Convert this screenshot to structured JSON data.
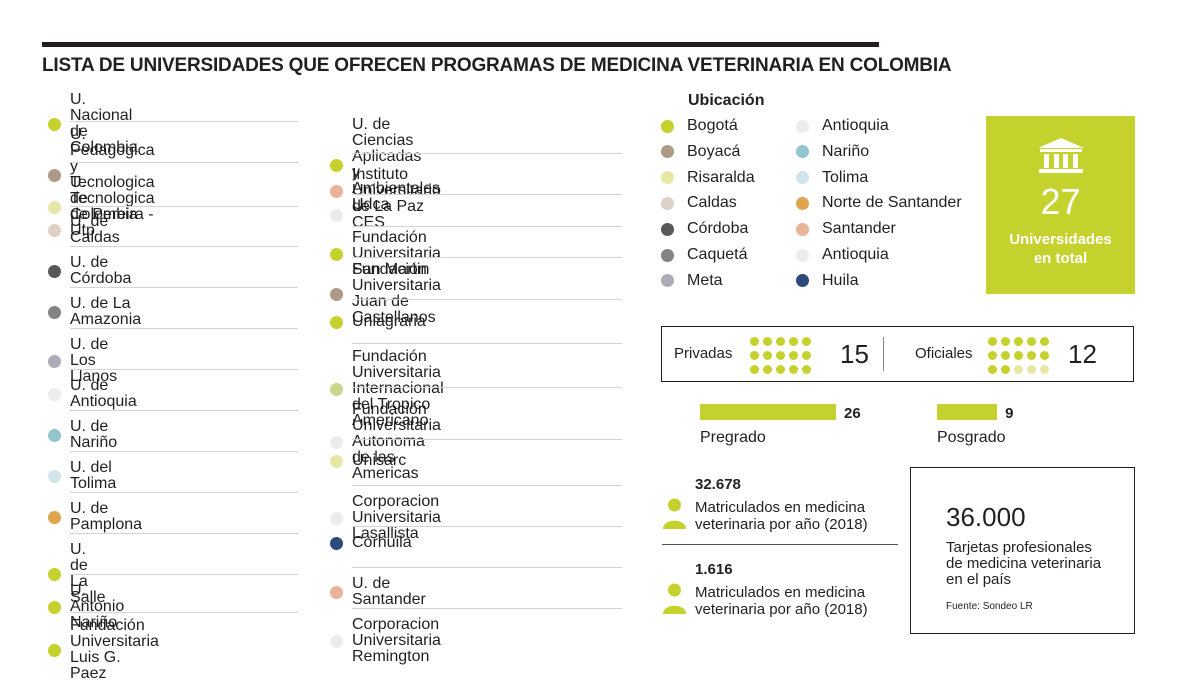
{
  "title": "LISTA DE UNIVERSIDADES QUE OFRECEN PROGRAMAS DE MEDICINA VETERINARIA EN COLOMBIA",
  "colors": {
    "lime": "#c5d22d",
    "brown": "#ad9a85",
    "pale_yellow": "#e6e7a7",
    "beige": "#ddd0c4",
    "dark_gray": "#58585a",
    "gray": "#838385",
    "lilac_gray": "#aeabb6",
    "very_light_gray": "#ececec",
    "teal": "#94c5cf",
    "light_blue": "#d1e5ea",
    "orange": "#e0a44f",
    "salmon": "#e8b399",
    "light_green": "#cbd58c",
    "navy": "#2c4a7a"
  },
  "universities_col1": [
    {
      "name": "U. Nacional de Colombia",
      "color": "#c5d22d"
    },
    {
      "name": "U. Pedagogica y Tecnologica\nde Colombia",
      "color": "#ad9a85"
    },
    {
      "name": "U. Tecnologica de Pereira - Utp",
      "color": "#e6e7a7"
    },
    {
      "name": "U. de Caldas",
      "color": "#ddd0c4"
    },
    {
      "name": "U. de Córdoba",
      "color": "#58585a"
    },
    {
      "name": "U. de La Amazonia",
      "color": "#838385"
    },
    {
      "name": "U. de Los Llanos",
      "color": "#aeabb6"
    },
    {
      "name": "U. de Antioquia",
      "color": "#ececec"
    },
    {
      "name": "U. de Nariño",
      "color": "#94c5cf"
    },
    {
      "name": "U. del Tolima",
      "color": "#d1e5ea"
    },
    {
      "name": "U. de Pamplona",
      "color": "#e0a44f"
    },
    {
      "name": "U. de La Salle",
      "color": "#c5d22d"
    },
    {
      "name": "U. Antonio Nariño",
      "color": "#c5d22d"
    },
    {
      "name": "Fundación Universitaria Luis G. Paez",
      "color": "#c5d22d"
    }
  ],
  "universities_col2": [
    {
      "name": "U. de Ciencias Aplicadas\ny Ambientales Udca",
      "color": "#c5d22d"
    },
    {
      "name": "Instituto Universitario de La Paz",
      "color": "#e8b399"
    },
    {
      "name": "U. CES",
      "color": "#ececec"
    },
    {
      "name": "Fundación Universitaria San Martin",
      "color": "#c5d22d"
    },
    {
      "name": "Fundación Universitaria\nJuan de Castellanos",
      "color": "#ad9a85"
    },
    {
      "name": "Uniagraria",
      "color": "#c5d22d"
    },
    {
      "name": "Fundación Universitaria\nInternacional del Tropico Americano",
      "color": "#cbd58c"
    },
    {
      "name": "Fundación Universitaria\nAutonoma de las Americas",
      "color": "#ececec"
    },
    {
      "name": "Unisarc",
      "color": "#e6e7a7"
    },
    {
      "name": "Corporacion Universitaria Lasallista",
      "color": "#ececec"
    },
    {
      "name": "Corhuila",
      "color": "#2c4a7a"
    },
    {
      "name": "U. de Santander",
      "color": "#e8b399"
    },
    {
      "name": "Corporacion Universitaria Remington",
      "color": "#ececec"
    }
  ],
  "ubicacion": {
    "title": "Ubicación",
    "col1": [
      {
        "name": "Bogotá",
        "color": "#c5d22d"
      },
      {
        "name": "Boyacá",
        "color": "#ad9a85"
      },
      {
        "name": "Risaralda",
        "color": "#e6e7a7"
      },
      {
        "name": "Caldas",
        "color": "#ddd0c4"
      },
      {
        "name": "Córdoba",
        "color": "#58585a"
      },
      {
        "name": "Caquetá",
        "color": "#838385"
      },
      {
        "name": "Meta",
        "color": "#aeabb6"
      }
    ],
    "col2": [
      {
        "name": "Antioquia",
        "color": "#ececec"
      },
      {
        "name": "Nariño",
        "color": "#94c5cf"
      },
      {
        "name": "Tolima",
        "color": "#d1e5ea"
      },
      {
        "name": "Norte de Santander",
        "color": "#e0a44f"
      },
      {
        "name": "Santander",
        "color": "#e8b399"
      },
      {
        "name": "Antioquia",
        "color": "#ececec"
      },
      {
        "name": "Huila",
        "color": "#2c4a7a"
      }
    ]
  },
  "total": {
    "value": "27",
    "label": "Universidades\nen total",
    "icon": "university-building-icon"
  },
  "tipo": {
    "privadas": {
      "label": "Privadas",
      "value": "15",
      "count": 15
    },
    "oficiales": {
      "label": "Oficiales",
      "value": "12",
      "count": 12
    }
  },
  "programas": {
    "pregrado": {
      "label": "Pregrado",
      "value": 26
    },
    "posgrado": {
      "label": "Posgrado",
      "value": 9
    }
  },
  "matriculados": [
    {
      "value": "32.678",
      "label": "Matriculados en medicina\nveterinaria por año (2018)"
    },
    {
      "value": "1.616",
      "label": "Matriculados en medicina\nveterinaria por año (2018)"
    }
  ],
  "tarjetas": {
    "value": "36.000",
    "label": "Tarjetas profesionales\nde medicina veterinaria\nen el país",
    "source": "Fuente: Sondeo LR"
  }
}
